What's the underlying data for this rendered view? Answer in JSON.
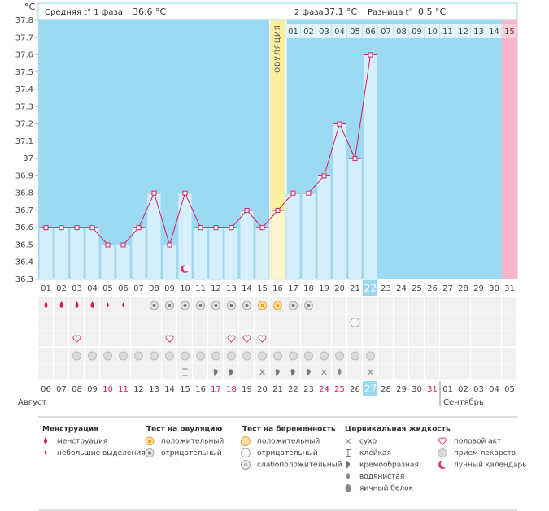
{
  "header": {
    "axis_unit": "°C",
    "phase1_label": "Средняя t° 1 фаза",
    "phase1_value": "36.6 °C",
    "phase2_label": "2 фаза",
    "phase2_value": "37.1 °C",
    "diff_label": "Разница t°",
    "diff_value": "0.5 °C"
  },
  "chart_data": {
    "type": "line",
    "categories": [
      "01",
      "02",
      "03",
      "04",
      "05",
      "06",
      "07",
      "08",
      "09",
      "10",
      "11",
      "12",
      "13",
      "14",
      "15",
      "16",
      "17",
      "18",
      "19",
      "20",
      "21",
      "22",
      "23",
      "24",
      "25",
      "26",
      "27",
      "28",
      "29",
      "30",
      "31"
    ],
    "values": [
      36.6,
      36.6,
      36.6,
      36.6,
      36.5,
      36.5,
      36.6,
      36.8,
      36.5,
      36.8,
      36.6,
      36.6,
      36.6,
      36.7,
      36.6,
      36.7,
      36.8,
      36.8,
      36.9,
      37.2,
      37.0,
      37.6,
      null,
      null,
      null,
      null,
      null,
      null,
      null,
      null,
      null
    ],
    "color": "#d81b60",
    "ylim": [
      36.3,
      37.8
    ],
    "yticks": [
      36.3,
      36.4,
      36.5,
      36.6,
      36.7,
      36.8,
      36.9,
      37,
      37.1,
      37.2,
      37.3,
      37.4,
      37.5,
      37.6,
      37.7,
      37.8
    ],
    "ovulation_label": "ОВУЛЯЦИЯ",
    "phase2_days": [
      "01",
      "02",
      "03",
      "04",
      "05",
      "06",
      "07",
      "08",
      "09",
      "10",
      "11",
      "12",
      "13",
      "14",
      "15"
    ],
    "dates": [
      "06",
      "07",
      "08",
      "09",
      "10",
      "11",
      "12",
      "13",
      "14",
      "15",
      "16",
      "17",
      "18",
      "19",
      "20",
      "21",
      "22",
      "23",
      "24",
      "25",
      "26",
      "27",
      "28",
      "29",
      "30",
      "31",
      "01",
      "02",
      "03",
      "04",
      "05"
    ],
    "months": [
      "Август",
      "Сентябрь"
    ]
  },
  "legend": [
    {
      "title": "Менструация",
      "items": [
        "менструация",
        "небольшие выделения"
      ]
    },
    {
      "title": "Тест на овуляцию",
      "items": [
        "положительный",
        "отрицательный"
      ]
    },
    {
      "title": "Тест на беременность",
      "items": [
        "положительный",
        "отрицательный",
        "слабоположительный"
      ]
    },
    {
      "title": "Цервикальная жидкость",
      "items": [
        "сухо",
        "клейкая",
        "кремообразная",
        "водянистая",
        "яичный белок"
      ]
    },
    {
      "items": [
        "половой акт",
        "прием лекарств",
        "лунный календарь"
      ]
    }
  ]
}
